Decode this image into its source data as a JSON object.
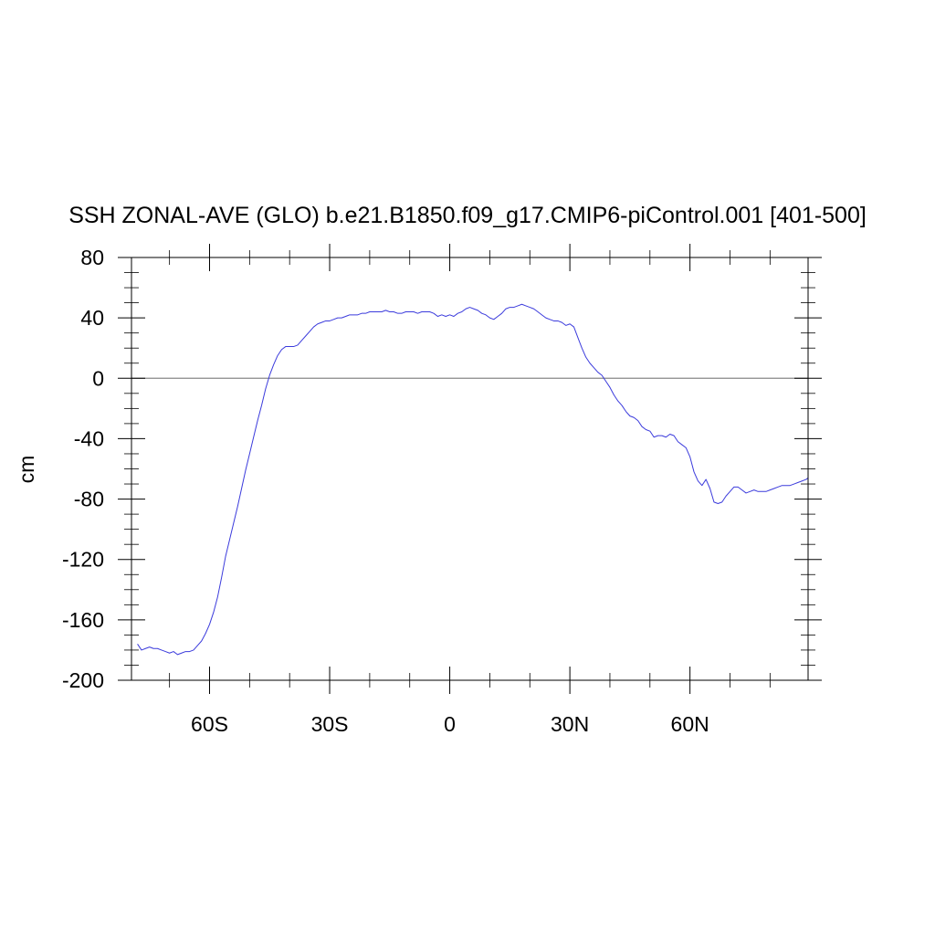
{
  "chart_data": {
    "type": "line",
    "title": "SSH ZONAL-AVE (GLO) b.e21.B1850.f09_g17.CMIP6-piControl.001 [401-500]",
    "xlabel": "",
    "ylabel": "cm",
    "xlim": [
      -79.5,
      89.5
    ],
    "ylim": [
      -200,
      80
    ],
    "xticks": [
      {
        "value": -60,
        "label": "60S"
      },
      {
        "value": -30,
        "label": "30S"
      },
      {
        "value": 0,
        "label": "0"
      },
      {
        "value": 30,
        "label": "30N"
      },
      {
        "value": 60,
        "label": "60N"
      }
    ],
    "yticks": [
      {
        "value": 80,
        "label": "80"
      },
      {
        "value": 40,
        "label": "40"
      },
      {
        "value": 0,
        "label": "0"
      },
      {
        "value": -40,
        "label": "-40"
      },
      {
        "value": -80,
        "label": "-80"
      },
      {
        "value": -120,
        "label": "-120"
      },
      {
        "value": -160,
        "label": "-160"
      },
      {
        "value": -200,
        "label": "-200"
      }
    ],
    "reference_line": 0,
    "grid": false,
    "colors": {
      "series": "#3b3bdc",
      "reference": "#888888",
      "axes": "#000000"
    },
    "series": [
      {
        "values": [
          [
            -78,
            -176
          ],
          [
            -77,
            -180
          ],
          [
            -76,
            -179
          ],
          [
            -75,
            -178
          ],
          [
            -74,
            -179
          ],
          [
            -73,
            -179
          ],
          [
            -72,
            -180
          ],
          [
            -71,
            -181
          ],
          [
            -70,
            -182
          ],
          [
            -69,
            -181
          ],
          [
            -68,
            -183
          ],
          [
            -67,
            -182
          ],
          [
            -66,
            -181
          ],
          [
            -65,
            -181
          ],
          [
            -64,
            -180
          ],
          [
            -63,
            -177
          ],
          [
            -62,
            -174
          ],
          [
            -61,
            -169
          ],
          [
            -60,
            -163
          ],
          [
            -59,
            -155
          ],
          [
            -58,
            -145
          ],
          [
            -57,
            -132
          ],
          [
            -56,
            -118
          ],
          [
            -55,
            -107
          ],
          [
            -54,
            -96
          ],
          [
            -53,
            -85
          ],
          [
            -52,
            -73
          ],
          [
            -51,
            -61
          ],
          [
            -50,
            -50
          ],
          [
            -49,
            -39
          ],
          [
            -48,
            -28
          ],
          [
            -47,
            -18
          ],
          [
            -46,
            -7
          ],
          [
            -45,
            2
          ],
          [
            -44,
            9
          ],
          [
            -43,
            15
          ],
          [
            -42,
            19
          ],
          [
            -41,
            21
          ],
          [
            -40,
            21
          ],
          [
            -39,
            21
          ],
          [
            -38,
            22
          ],
          [
            -37,
            25
          ],
          [
            -36,
            28
          ],
          [
            -35,
            31
          ],
          [
            -34,
            34
          ],
          [
            -33,
            36
          ],
          [
            -32,
            37
          ],
          [
            -31,
            38
          ],
          [
            -30,
            38
          ],
          [
            -29,
            39
          ],
          [
            -28,
            40
          ],
          [
            -27,
            40
          ],
          [
            -26,
            41
          ],
          [
            -25,
            42
          ],
          [
            -24,
            42
          ],
          [
            -23,
            42
          ],
          [
            -22,
            43
          ],
          [
            -21,
            43
          ],
          [
            -20,
            44
          ],
          [
            -19,
            44
          ],
          [
            -18,
            44
          ],
          [
            -17,
            44
          ],
          [
            -16,
            45
          ],
          [
            -15,
            44
          ],
          [
            -14,
            44
          ],
          [
            -13,
            43
          ],
          [
            -12,
            43
          ],
          [
            -11,
            44
          ],
          [
            -10,
            44
          ],
          [
            -9,
            44
          ],
          [
            -8,
            43
          ],
          [
            -7,
            44
          ],
          [
            -6,
            44
          ],
          [
            -5,
            44
          ],
          [
            -4,
            43
          ],
          [
            -3,
            41
          ],
          [
            -2,
            42
          ],
          [
            -1,
            41
          ],
          [
            0,
            42
          ],
          [
            1,
            41
          ],
          [
            2,
            43
          ],
          [
            3,
            44
          ],
          [
            4,
            46
          ],
          [
            5,
            47
          ],
          [
            6,
            46
          ],
          [
            7,
            45
          ],
          [
            8,
            43
          ],
          [
            9,
            42
          ],
          [
            10,
            40
          ],
          [
            11,
            39
          ],
          [
            12,
            41
          ],
          [
            13,
            43
          ],
          [
            14,
            46
          ],
          [
            15,
            47
          ],
          [
            16,
            47
          ],
          [
            17,
            48
          ],
          [
            18,
            49
          ],
          [
            19,
            48
          ],
          [
            20,
            47
          ],
          [
            21,
            46
          ],
          [
            22,
            44
          ],
          [
            23,
            42
          ],
          [
            24,
            40
          ],
          [
            25,
            39
          ],
          [
            26,
            38
          ],
          [
            27,
            38
          ],
          [
            28,
            37
          ],
          [
            29,
            35
          ],
          [
            30,
            36
          ],
          [
            31,
            34
          ],
          [
            32,
            27
          ],
          [
            33,
            20
          ],
          [
            34,
            14
          ],
          [
            35,
            10
          ],
          [
            36,
            7
          ],
          [
            37,
            4
          ],
          [
            38,
            2
          ],
          [
            39,
            -2
          ],
          [
            40,
            -6
          ],
          [
            41,
            -11
          ],
          [
            42,
            -15
          ],
          [
            43,
            -18
          ],
          [
            44,
            -22
          ],
          [
            45,
            -25
          ],
          [
            46,
            -26
          ],
          [
            47,
            -28
          ],
          [
            48,
            -32
          ],
          [
            49,
            -34
          ],
          [
            50,
            -35
          ],
          [
            51,
            -39
          ],
          [
            52,
            -38
          ],
          [
            53,
            -38
          ],
          [
            54,
            -39
          ],
          [
            55,
            -37
          ],
          [
            56,
            -38
          ],
          [
            57,
            -42
          ],
          [
            58,
            -44
          ],
          [
            59,
            -46
          ],
          [
            60,
            -52
          ],
          [
            61,
            -62
          ],
          [
            62,
            -68
          ],
          [
            63,
            -71
          ],
          [
            64,
            -67
          ],
          [
            65,
            -73
          ],
          [
            66,
            -82
          ],
          [
            67,
            -83
          ],
          [
            68,
            -82
          ],
          [
            69,
            -78
          ],
          [
            70,
            -75
          ],
          [
            71,
            -72
          ],
          [
            72,
            -72
          ],
          [
            73,
            -74
          ],
          [
            74,
            -76
          ],
          [
            75,
            -75
          ],
          [
            76,
            -74
          ],
          [
            77,
            -75
          ],
          [
            78,
            -75
          ],
          [
            79,
            -75
          ],
          [
            80,
            -74
          ],
          [
            81,
            -73
          ],
          [
            82,
            -72
          ],
          [
            83,
            -71
          ],
          [
            84,
            -71
          ],
          [
            85,
            -71
          ],
          [
            86,
            -70
          ],
          [
            87,
            -69
          ],
          [
            88,
            -68
          ],
          [
            89,
            -67
          ],
          [
            89.5,
            -66
          ]
        ]
      }
    ]
  }
}
